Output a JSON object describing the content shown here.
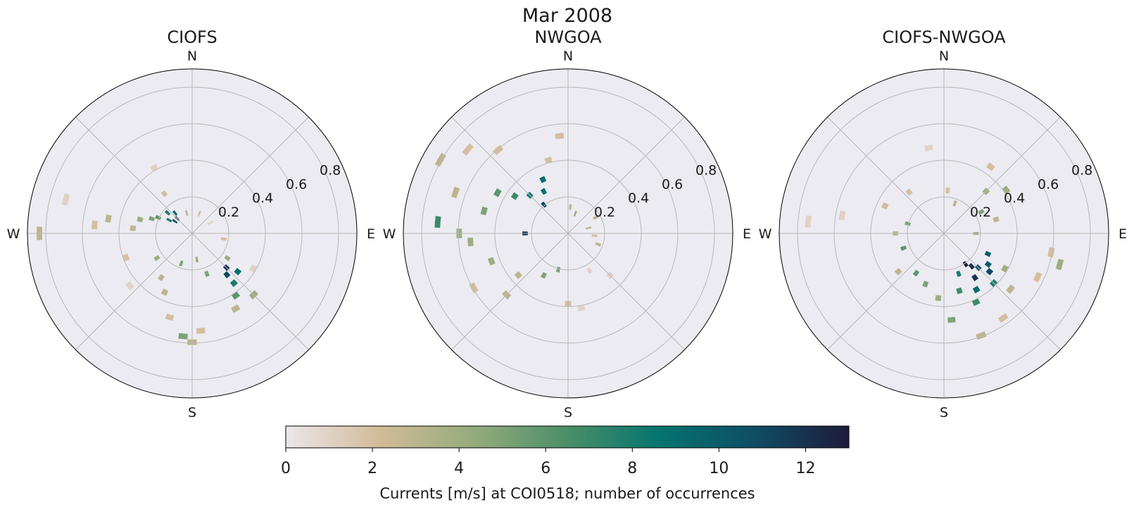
{
  "figure": {
    "title": "Mar 2008",
    "colorbar_label": "Currents [m/s] at COI0518; number of occurrences"
  },
  "colors": {
    "background": "#ffffff",
    "axes_face": "#ebebf1",
    "grid": "#b8b8b8",
    "colormap": [
      "#ebe6ea",
      "#d2bb99",
      "#95ab7d",
      "#4b8f68",
      "#04736f",
      "#0f4d63",
      "#1f1b3a"
    ]
  },
  "chart_data": [
    {
      "type": "heatmap",
      "subtype": "polar wind rose (direction x speed bins)",
      "title": "CIOFS",
      "direction_labels": [
        "N",
        "E",
        "S",
        "W"
      ],
      "radial_tick_labels": [
        "0.2",
        "0.4",
        "0.6",
        "0.8"
      ],
      "radial_ticks": [
        0.2,
        0.4,
        0.6,
        0.8
      ],
      "rlim": [
        0,
        0.9
      ],
      "grid": true,
      "bins": [
        {
          "theta": 315,
          "r": [
            0.1,
            0.13
          ],
          "count": 12
        },
        {
          "theta": 305,
          "r": [
            0.1,
            0.13
          ],
          "count": 11
        },
        {
          "theta": 320,
          "r": [
            0.13,
            0.16
          ],
          "count": 9
        },
        {
          "theta": 310,
          "r": [
            0.16,
            0.19
          ],
          "count": 8
        },
        {
          "theta": 300,
          "r": [
            0.13,
            0.16
          ],
          "count": 8
        },
        {
          "theta": 295,
          "r": [
            0.19,
            0.22
          ],
          "count": 6
        },
        {
          "theta": 290,
          "r": [
            0.22,
            0.25
          ],
          "count": 5
        },
        {
          "theta": 285,
          "r": [
            0.28,
            0.31
          ],
          "count": 4
        },
        {
          "theta": 275,
          "r": [
            0.31,
            0.34
          ],
          "count": 3
        },
        {
          "theta": 280,
          "r": [
            0.45,
            0.48
          ],
          "count": 3
        },
        {
          "theta": 275,
          "r": [
            0.52,
            0.55
          ],
          "count": 2
        },
        {
          "theta": 285,
          "r": [
            0.7,
            0.73
          ],
          "count": 1
        },
        {
          "theta": 270,
          "r": [
            0.82,
            0.85
          ],
          "count": 3
        },
        {
          "theta": 325,
          "r": [
            0.25,
            0.28
          ],
          "count": 2
        },
        {
          "theta": 330,
          "r": [
            0.4,
            0.43
          ],
          "count": 1
        },
        {
          "theta": 345,
          "r": [
            0.1,
            0.13
          ],
          "count": 3
        },
        {
          "theta": 135,
          "r": [
            0.25,
            0.28
          ],
          "count": 12
        },
        {
          "theta": 140,
          "r": [
            0.28,
            0.31
          ],
          "count": 11
        },
        {
          "theta": 130,
          "r": [
            0.31,
            0.34
          ],
          "count": 9
        },
        {
          "theta": 140,
          "r": [
            0.34,
            0.37
          ],
          "count": 8
        },
        {
          "theta": 145,
          "r": [
            0.4,
            0.43
          ],
          "count": 6
        },
        {
          "theta": 135,
          "r": [
            0.46,
            0.49
          ],
          "count": 4
        },
        {
          "theta": 150,
          "r": [
            0.46,
            0.49
          ],
          "count": 3
        },
        {
          "theta": 125,
          "r": [
            0.22,
            0.25
          ],
          "count": 4
        },
        {
          "theta": 120,
          "r": [
            0.37,
            0.4
          ],
          "count": 1
        },
        {
          "theta": 160,
          "r": [
            0.22,
            0.25
          ],
          "count": 5
        },
        {
          "theta": 175,
          "r": [
            0.52,
            0.55
          ],
          "count": 2
        },
        {
          "theta": 185,
          "r": [
            0.55,
            0.58
          ],
          "count": 5
        },
        {
          "theta": 180,
          "r": [
            0.58,
            0.61
          ],
          "count": 3
        },
        {
          "theta": 195,
          "r": [
            0.46,
            0.49
          ],
          "count": 2
        },
        {
          "theta": 205,
          "r": [
            0.34,
            0.37
          ],
          "count": 3
        },
        {
          "theta": 215,
          "r": [
            0.28,
            0.31
          ],
          "count": 3
        },
        {
          "theta": 235,
          "r": [
            0.22,
            0.25
          ],
          "count": 4
        },
        {
          "theta": 250,
          "r": [
            0.37,
            0.4
          ],
          "count": 2
        },
        {
          "theta": 230,
          "r": [
            0.43,
            0.46
          ],
          "count": 1
        },
        {
          "theta": 100,
          "r": [
            0.16,
            0.19
          ],
          "count": 2
        },
        {
          "theta": 20,
          "r": [
            0.1,
            0.13
          ],
          "count": 2
        },
        {
          "theta": 60,
          "r": [
            0.1,
            0.13
          ],
          "count": 1
        },
        {
          "theta": 170,
          "r": [
            0.13,
            0.16
          ],
          "count": 4
        },
        {
          "theta": 200,
          "r": [
            0.16,
            0.19
          ],
          "count": 5
        }
      ]
    },
    {
      "type": "heatmap",
      "subtype": "polar wind rose (direction x speed bins)",
      "title": "NWGOA",
      "direction_labels": [
        "N",
        "E",
        "S",
        "W"
      ],
      "radial_tick_labels": [
        "0.2",
        "0.4",
        "0.6",
        "0.8"
      ],
      "radial_ticks": [
        0.2,
        0.4,
        0.6,
        0.8
      ],
      "rlim": [
        0,
        0.9
      ],
      "grid": true,
      "bins": [
        {
          "theta": 270,
          "r": [
            0.22,
            0.25
          ],
          "count": 12
        },
        {
          "theta": 320,
          "r": [
            0.19,
            0.22
          ],
          "count": 11
        },
        {
          "theta": 330,
          "r": [
            0.25,
            0.28
          ],
          "count": 9
        },
        {
          "theta": 315,
          "r": [
            0.28,
            0.31
          ],
          "count": 8
        },
        {
          "theta": 335,
          "r": [
            0.31,
            0.34
          ],
          "count": 9
        },
        {
          "theta": 305,
          "r": [
            0.34,
            0.37
          ],
          "count": 7
        },
        {
          "theta": 300,
          "r": [
            0.43,
            0.46
          ],
          "count": 6
        },
        {
          "theta": 285,
          "r": [
            0.46,
            0.49
          ],
          "count": 5
        },
        {
          "theta": 265,
          "r": [
            0.52,
            0.55
          ],
          "count": 4
        },
        {
          "theta": 270,
          "r": [
            0.58,
            0.61
          ],
          "count": 4
        },
        {
          "theta": 275,
          "r": [
            0.7,
            0.73
          ],
          "count": 7
        },
        {
          "theta": 290,
          "r": [
            0.64,
            0.67
          ],
          "count": 3
        },
        {
          "theta": 300,
          "r": [
            0.79,
            0.82
          ],
          "count": 3
        },
        {
          "theta": 310,
          "r": [
            0.7,
            0.73
          ],
          "count": 2
        },
        {
          "theta": 320,
          "r": [
            0.58,
            0.61
          ],
          "count": 2
        },
        {
          "theta": 345,
          "r": [
            0.4,
            0.43
          ],
          "count": 2
        },
        {
          "theta": 355,
          "r": [
            0.52,
            0.55
          ],
          "count": 2
        },
        {
          "theta": 250,
          "r": [
            0.43,
            0.46
          ],
          "count": 4
        },
        {
          "theta": 240,
          "r": [
            0.58,
            0.61
          ],
          "count": 2
        },
        {
          "theta": 230,
          "r": [
            0.34,
            0.37
          ],
          "count": 3
        },
        {
          "theta": 210,
          "r": [
            0.25,
            0.28
          ],
          "count": 5
        },
        {
          "theta": 195,
          "r": [
            0.19,
            0.22
          ],
          "count": 5
        },
        {
          "theta": 180,
          "r": [
            0.37,
            0.4
          ],
          "count": 2
        },
        {
          "theta": 170,
          "r": [
            0.4,
            0.43
          ],
          "count": 1
        },
        {
          "theta": 150,
          "r": [
            0.22,
            0.25
          ],
          "count": 1
        },
        {
          "theta": 135,
          "r": [
            0.31,
            0.34
          ],
          "count": 1
        },
        {
          "theta": 60,
          "r": [
            0.16,
            0.19
          ],
          "count": 3
        },
        {
          "theta": 75,
          "r": [
            0.1,
            0.13
          ],
          "count": 3
        },
        {
          "theta": 95,
          "r": [
            0.13,
            0.16
          ],
          "count": 2
        },
        {
          "theta": 110,
          "r": [
            0.16,
            0.19
          ],
          "count": 3
        },
        {
          "theta": 20,
          "r": [
            0.1,
            0.13
          ],
          "count": 4
        },
        {
          "theta": 5,
          "r": [
            0.13,
            0.16
          ],
          "count": 3
        },
        {
          "theta": 225,
          "r": [
            0.46,
            0.49
          ],
          "count": 3
        }
      ]
    },
    {
      "type": "heatmap",
      "subtype": "polar wind rose (direction x speed bins)",
      "title": "CIOFS-NWGOA",
      "direction_labels": [
        "N",
        "E",
        "S",
        "W"
      ],
      "radial_tick_labels": [
        "0.2",
        "0.4",
        "0.6",
        "0.8"
      ],
      "radial_ticks": [
        0.2,
        0.4,
        0.6,
        0.8
      ],
      "rlim": [
        0,
        0.9
      ],
      "grid": true,
      "bins": [
        {
          "theta": 145,
          "r": [
            0.19,
            0.22
          ],
          "count": 13
        },
        {
          "theta": 140,
          "r": [
            0.22,
            0.25
          ],
          "count": 12
        },
        {
          "theta": 135,
          "r": [
            0.25,
            0.28
          ],
          "count": 11
        },
        {
          "theta": 145,
          "r": [
            0.28,
            0.31
          ],
          "count": 12
        },
        {
          "theta": 130,
          "r": [
            0.31,
            0.34
          ],
          "count": 11
        },
        {
          "theta": 125,
          "r": [
            0.28,
            0.31
          ],
          "count": 10
        },
        {
          "theta": 115,
          "r": [
            0.25,
            0.28
          ],
          "count": 10
        },
        {
          "theta": 150,
          "r": [
            0.34,
            0.37
          ],
          "count": 9
        },
        {
          "theta": 160,
          "r": [
            0.22,
            0.25
          ],
          "count": 8
        },
        {
          "theta": 135,
          "r": [
            0.37,
            0.4
          ],
          "count": 8
        },
        {
          "theta": 155,
          "r": [
            0.4,
            0.43
          ],
          "count": 7
        },
        {
          "theta": 165,
          "r": [
            0.31,
            0.34
          ],
          "count": 7
        },
        {
          "theta": 120,
          "r": [
            0.37,
            0.4
          ],
          "count": 4
        },
        {
          "theta": 130,
          "r": [
            0.46,
            0.49
          ],
          "count": 3
        },
        {
          "theta": 115,
          "r": [
            0.55,
            0.58
          ],
          "count": 2
        },
        {
          "theta": 105,
          "r": [
            0.64,
            0.67
          ],
          "count": 4
        },
        {
          "theta": 100,
          "r": [
            0.58,
            0.61
          ],
          "count": 2
        },
        {
          "theta": 145,
          "r": [
            0.55,
            0.58
          ],
          "count": 2
        },
        {
          "theta": 160,
          "r": [
            0.58,
            0.61
          ],
          "count": 3
        },
        {
          "theta": 175,
          "r": [
            0.46,
            0.49
          ],
          "count": 5
        },
        {
          "theta": 185,
          "r": [
            0.34,
            0.37
          ],
          "count": 4
        },
        {
          "theta": 200,
          "r": [
            0.28,
            0.31
          ],
          "count": 5
        },
        {
          "theta": 215,
          "r": [
            0.25,
            0.28
          ],
          "count": 6
        },
        {
          "theta": 230,
          "r": [
            0.31,
            0.34
          ],
          "count": 3
        },
        {
          "theta": 250,
          "r": [
            0.22,
            0.25
          ],
          "count": 6
        },
        {
          "theta": 270,
          "r": [
            0.25,
            0.28
          ],
          "count": 3
        },
        {
          "theta": 285,
          "r": [
            0.19,
            0.22
          ],
          "count": 5
        },
        {
          "theta": 295,
          "r": [
            0.34,
            0.37
          ],
          "count": 2
        },
        {
          "theta": 280,
          "r": [
            0.55,
            0.58
          ],
          "count": 1
        },
        {
          "theta": 275,
          "r": [
            0.73,
            0.76
          ],
          "count": 1
        },
        {
          "theta": 60,
          "r": [
            0.22,
            0.25
          ],
          "count": 5
        },
        {
          "theta": 45,
          "r": [
            0.31,
            0.34
          ],
          "count": 4
        },
        {
          "theta": 55,
          "r": [
            0.4,
            0.43
          ],
          "count": 4
        },
        {
          "theta": 35,
          "r": [
            0.43,
            0.46
          ],
          "count": 2
        },
        {
          "theta": 75,
          "r": [
            0.28,
            0.31
          ],
          "count": 3
        },
        {
          "theta": 90,
          "r": [
            0.16,
            0.19
          ],
          "count": 4
        },
        {
          "theta": 20,
          "r": [
            0.16,
            0.19
          ],
          "count": 3
        },
        {
          "theta": 5,
          "r": [
            0.22,
            0.25
          ],
          "count": 2
        },
        {
          "theta": 350,
          "r": [
            0.46,
            0.49
          ],
          "count": 1
        },
        {
          "theta": 320,
          "r": [
            0.28,
            0.31
          ],
          "count": 2
        }
      ]
    },
    {
      "type": "heatmap",
      "subtype": "colorbar",
      "label": "Currents [m/s] at COI0518; number of occurrences",
      "range": [
        0,
        13
      ],
      "ticks": [
        0,
        2,
        4,
        6,
        8,
        10,
        12
      ],
      "tick_labels": [
        "0",
        "2",
        "4",
        "6",
        "8",
        "10",
        "12"
      ]
    }
  ]
}
